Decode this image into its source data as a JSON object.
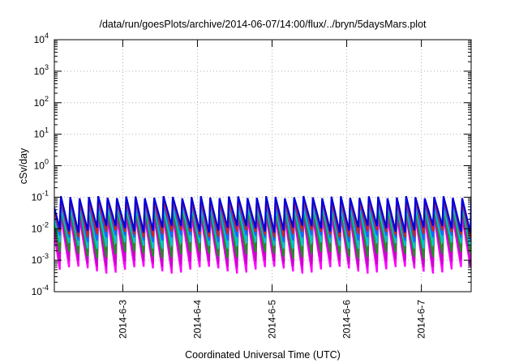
{
  "chart_data": {
    "type": "line",
    "title": "/data/run/goesPlots/archive/2014-06-07/14:00/flux/../bryn/5daysMars.plot",
    "xlabel": "Coordinated Universal Time (UTC)",
    "ylabel": "cSv/day",
    "yscale": "log",
    "ylim": [
      0.0001,
      10000
    ],
    "y_ticks": [
      {
        "base": "10",
        "exp": "-4",
        "value": 0.0001
      },
      {
        "base": "10",
        "exp": "-3",
        "value": 0.001
      },
      {
        "base": "10",
        "exp": "-2",
        "value": 0.01
      },
      {
        "base": "10",
        "exp": "-1",
        "value": 0.1
      },
      {
        "base": "10",
        "exp": "0",
        "value": 1
      },
      {
        "base": "10",
        "exp": "1",
        "value": 10
      },
      {
        "base": "10",
        "exp": "2",
        "value": 100
      },
      {
        "base": "10",
        "exp": "3",
        "value": 1000
      },
      {
        "base": "10",
        "exp": "4",
        "value": 10000
      }
    ],
    "xlim": [
      "2014-06-02 02:00",
      "2014-06-07 16:00"
    ],
    "x_ticks": [
      "2014-6-3",
      "2014-6-4",
      "2014-6-5",
      "2014-6-6",
      "2014-6-7"
    ],
    "grid": true,
    "approx_spike_period_hours": 3,
    "series": [
      {
        "color": "#ff00ff",
        "peak": 0.025,
        "trough": 0.0005
      },
      {
        "color": "#cc00cc",
        "peak": 0.03,
        "trough": 0.0008
      },
      {
        "color": "#1f8f1f",
        "peak": 0.045,
        "trough": 0.0015
      },
      {
        "color": "#00c8c8",
        "peak": 0.055,
        "trough": 0.003
      },
      {
        "color": "#1a66ff",
        "peak": 0.07,
        "trough": 0.005
      },
      {
        "color": "#cc2222",
        "peak": 0.085,
        "trough": 0.007
      },
      {
        "color": "#0000dd",
        "peak": 0.1,
        "trough": 0.01
      }
    ]
  }
}
